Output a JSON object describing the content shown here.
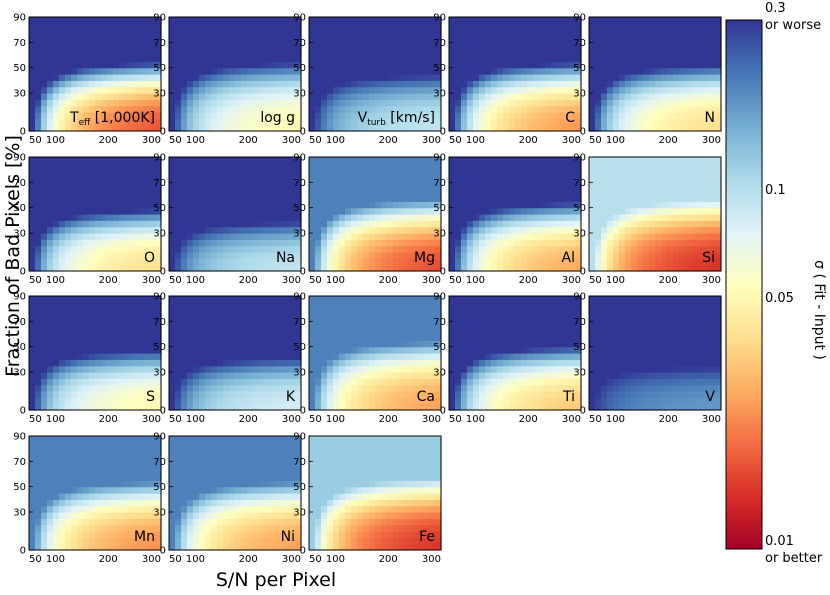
{
  "chart_data": {
    "type": "heatmap",
    "xlabel": "S/N per Pixel",
    "ylabel": "Fraction of Bad Pixels [%]",
    "x_range": [
      50,
      300
    ],
    "y_range": [
      0,
      90
    ],
    "x_ticks": [
      "50",
      "100",
      "200",
      "300"
    ],
    "y_ticks": [
      "0",
      "30",
      "50",
      "70",
      "90"
    ],
    "colorbar": {
      "label": "σ ( Fit - Input )",
      "scale": "log",
      "range": [
        0.01,
        0.3
      ],
      "top_label": "0.3",
      "top_sublabel": "or worse",
      "bottom_label": "0.01",
      "bottom_sublabel": "or better",
      "ticks": [
        "0.1",
        "0.05"
      ],
      "colors": [
        "#a50026",
        "#d73027",
        "#f46d43",
        "#fdae61",
        "#fee090",
        "#ffffbf",
        "#e0f3f8",
        "#abd9e9",
        "#74add1",
        "#4575b4",
        "#313695"
      ]
    },
    "panels": [
      {
        "label": "T",
        "sub": "eff",
        "suffix": " [1,000K]",
        "sigma_best": 0.012,
        "sigma_worst": 0.3,
        "steep": 1.0
      },
      {
        "label": "log g",
        "sub": "",
        "suffix": "",
        "sigma_best": 0.04,
        "sigma_worst": 0.3,
        "steep": 1.0
      },
      {
        "label": "V",
        "sub": "turb",
        "suffix": " [km/s]",
        "sigma_best": 0.08,
        "sigma_worst": 0.3,
        "steep": 1.6
      },
      {
        "label": "C",
        "sub": "",
        "suffix": "",
        "sigma_best": 0.018,
        "sigma_worst": 0.3,
        "steep": 1.0
      },
      {
        "label": "N",
        "sub": "",
        "suffix": "",
        "sigma_best": 0.03,
        "sigma_worst": 0.3,
        "steep": 1.1
      },
      {
        "label": "O",
        "sub": "",
        "suffix": "",
        "sigma_best": 0.03,
        "sigma_worst": 0.3,
        "steep": 1.3
      },
      {
        "label": "Na",
        "sub": "",
        "suffix": "",
        "sigma_best": 0.08,
        "sigma_worst": 0.3,
        "steep": 2.2
      },
      {
        "label": "Mg",
        "sub": "",
        "suffix": "",
        "sigma_best": 0.012,
        "sigma_worst": 0.2,
        "steep": 0.9
      },
      {
        "label": "Al",
        "sub": "",
        "suffix": "",
        "sigma_best": 0.02,
        "sigma_worst": 0.3,
        "steep": 1.0
      },
      {
        "label": "Si",
        "sub": "",
        "suffix": "",
        "sigma_best": 0.011,
        "sigma_worst": 0.1,
        "steep": 0.9
      },
      {
        "label": "S",
        "sub": "",
        "suffix": "",
        "sigma_best": 0.04,
        "sigma_worst": 0.3,
        "steep": 1.4
      },
      {
        "label": "K",
        "sub": "",
        "suffix": "",
        "sigma_best": 0.07,
        "sigma_worst": 0.3,
        "steep": 1.9
      },
      {
        "label": "Ca",
        "sub": "",
        "suffix": "",
        "sigma_best": 0.02,
        "sigma_worst": 0.2,
        "steep": 1.0
      },
      {
        "label": "Ti",
        "sub": "",
        "suffix": "",
        "sigma_best": 0.025,
        "sigma_worst": 0.3,
        "steep": 1.2
      },
      {
        "label": "V",
        "sub": "",
        "suffix": "",
        "sigma_best": 0.16,
        "sigma_worst": 0.3,
        "steep": 3.0
      },
      {
        "label": "Mn",
        "sub": "",
        "suffix": "",
        "sigma_best": 0.018,
        "sigma_worst": 0.2,
        "steep": 1.0
      },
      {
        "label": "Ni",
        "sub": "",
        "suffix": "",
        "sigma_best": 0.02,
        "sigma_worst": 0.2,
        "steep": 1.0
      },
      {
        "label": "Fe",
        "sub": "",
        "suffix": "",
        "sigma_best": 0.011,
        "sigma_worst": 0.12,
        "steep": 0.9
      }
    ]
  }
}
